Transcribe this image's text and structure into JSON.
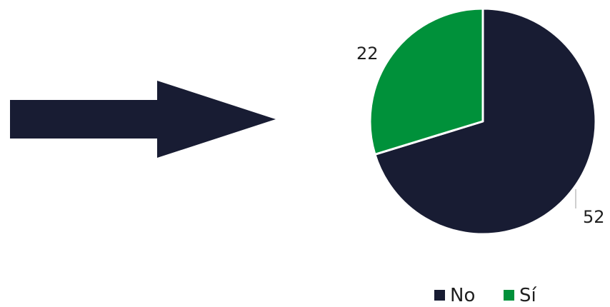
{
  "chart_data": {
    "type": "pie",
    "categories": [
      "No",
      "Sí"
    ],
    "values": [
      52,
      22
    ],
    "title": "",
    "legend_position": "bottom-right"
  },
  "colors": {
    "No": "#181c33",
    "Sí": "#00913a",
    "arrow": "#181c33",
    "leader_line": "#bfbfbf"
  },
  "decorations": {
    "arrow": "right-arrow-icon"
  }
}
